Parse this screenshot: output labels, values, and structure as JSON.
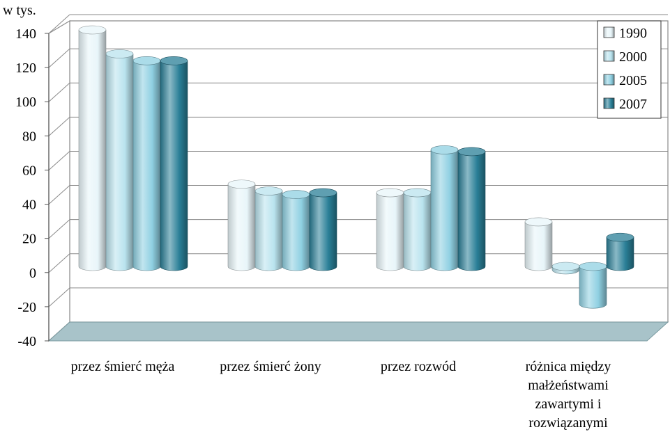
{
  "chart_data": {
    "type": "bar",
    "unit_label": "w tys.",
    "categories": [
      [
        "przez śmierć męża"
      ],
      [
        "przez śmierć żony"
      ],
      [
        "przez rozwód"
      ],
      [
        "różnica między",
        "małżeństwami",
        "zawartymi i",
        "rozwiązanymi"
      ]
    ],
    "series": [
      {
        "name": "1990",
        "color": "#e8f5f9",
        "values": [
          138,
          48,
          43,
          26
        ]
      },
      {
        "name": "2000",
        "color": "#b9e3ee",
        "values": [
          124,
          44,
          43,
          -2
        ]
      },
      {
        "name": "2005",
        "color": "#8fd0e2",
        "values": [
          120,
          42,
          68,
          -22
        ]
      },
      {
        "name": "2007",
        "color": "#2a7f97",
        "values": [
          120,
          43,
          67,
          17
        ]
      }
    ],
    "ylim": [
      -40,
      140
    ],
    "yticks": [
      "140",
      "120",
      "100",
      "80",
      "60",
      "40",
      "20",
      "0",
      "-20",
      "-40"
    ],
    "legend_position": "top-right"
  }
}
